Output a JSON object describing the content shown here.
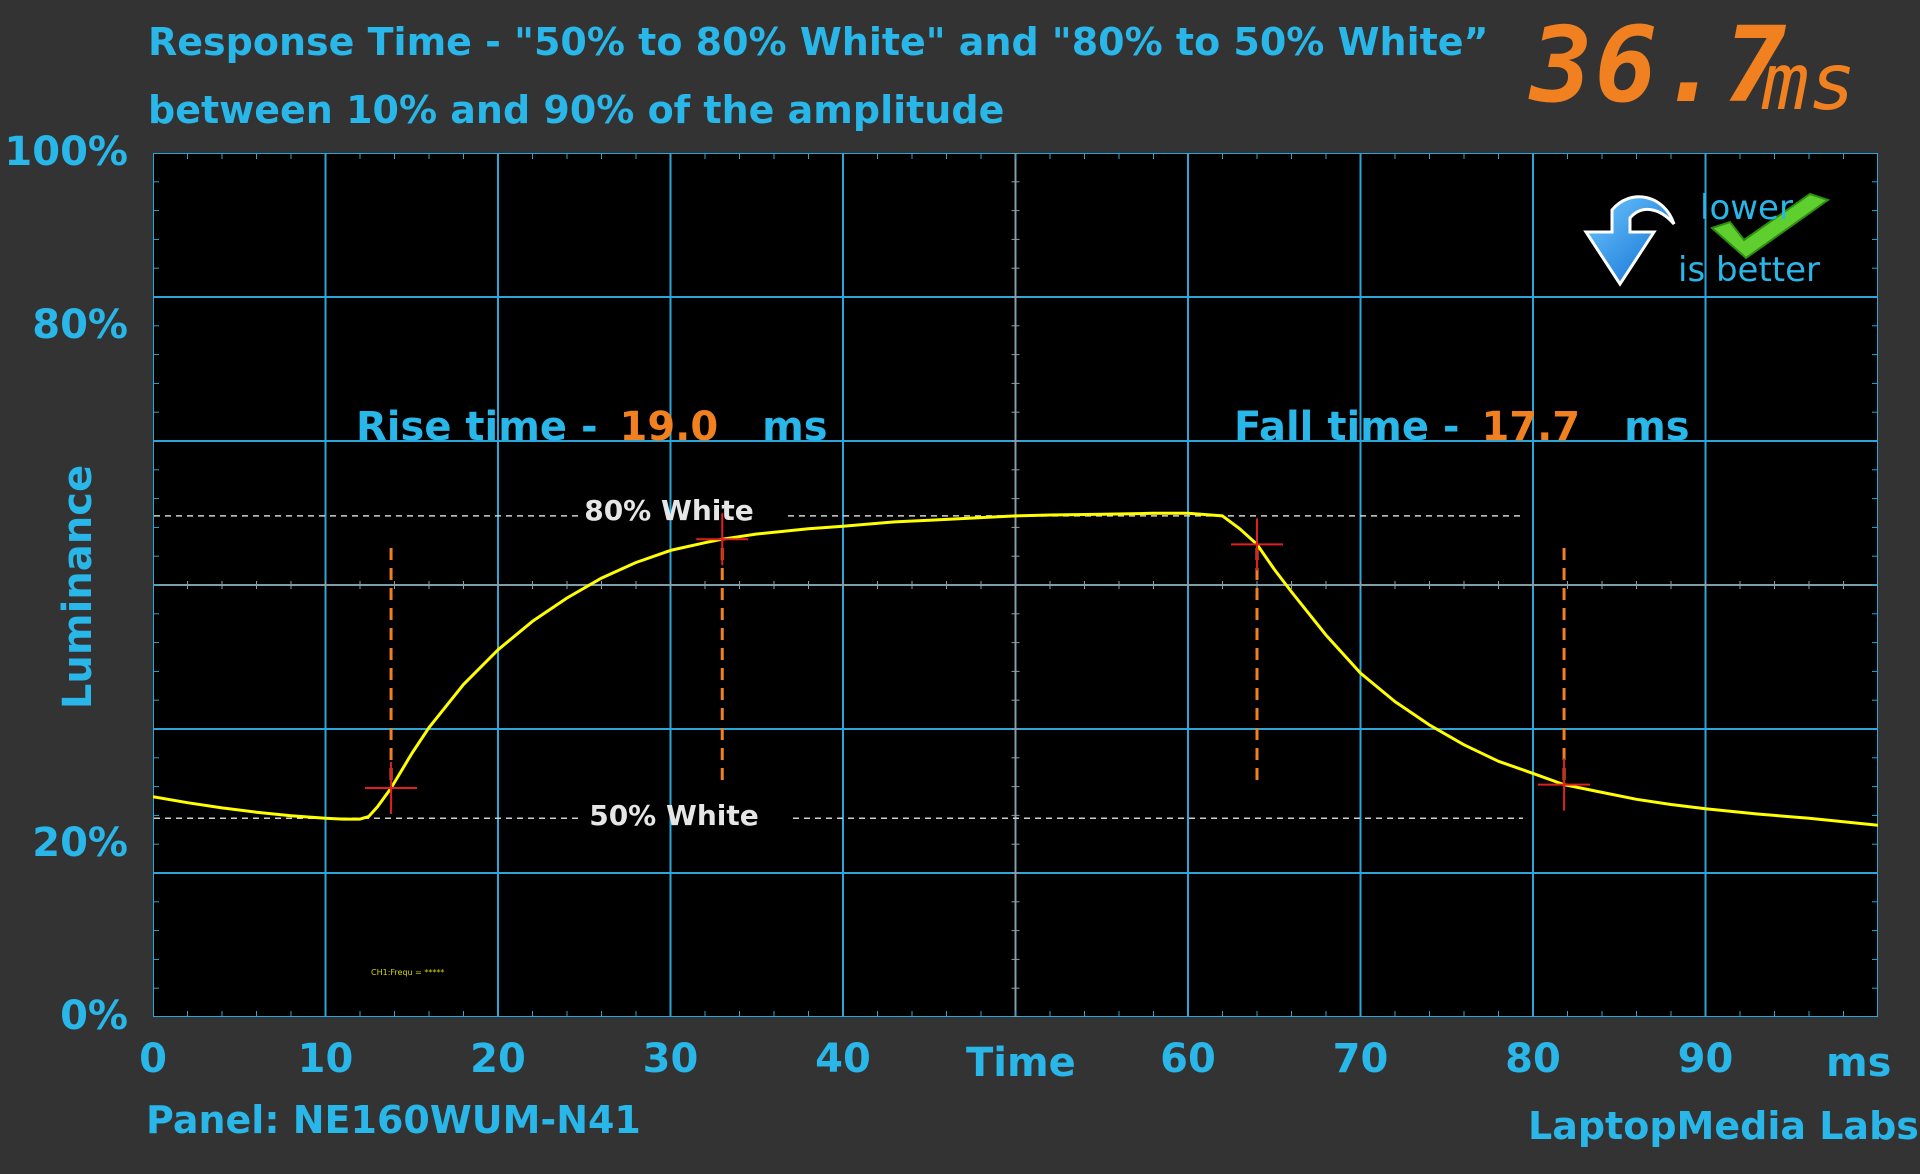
{
  "header": {
    "title_line1": "Response Time - \"50% to 80% White\" and \"80% to 50% White”",
    "title_line2": "between 10% and 90% of the amplitude",
    "total_value": "36.7",
    "total_unit": "ms"
  },
  "badge": {
    "line1": "lower",
    "line2": "is better",
    "arrow_icon": "curved-down-arrow-icon",
    "check_icon": "checkmark-icon"
  },
  "measurements": {
    "rise_label": "Rise time -",
    "rise_value": "19.0",
    "rise_unit": "ms",
    "fall_label": "Fall time -",
    "fall_value": "17.7",
    "fall_unit": "ms"
  },
  "footer": {
    "panel": "Panel: NE160WUM-N41",
    "brand": "LaptopMedia Labs"
  },
  "chart_data": {
    "type": "line",
    "xlabel": "Time",
    "x_unit_label": "ms",
    "ylabel": "Luminance",
    "xlim": [
      0,
      100
    ],
    "ylim": [
      0,
      100
    ],
    "x_ticks": [
      "0",
      "10",
      "20",
      "30",
      "40",
      "60",
      "70",
      "80",
      "90"
    ],
    "x_tick_values": [
      0,
      10,
      20,
      30,
      40,
      60,
      70,
      80,
      90
    ],
    "y_ticks": [
      "0%",
      "20%",
      "80%",
      "100%"
    ],
    "y_tick_values": [
      0,
      20,
      80,
      100
    ],
    "grid": true,
    "reference_lines": [
      {
        "label": "80% White",
        "y": 58
      },
      {
        "label": "50% White",
        "y": 23
      }
    ],
    "markers": {
      "rise_start_x": 13.8,
      "rise_end_x": 33.0,
      "fall_start_x": 64.0,
      "fall_end_x": 81.8
    },
    "annotation": "CH1:Frequ = *****",
    "series": [
      {
        "color": "#ffff00",
        "x": [
          0,
          2,
          4,
          6,
          8,
          10,
          11,
          12,
          12.5,
          13,
          13.8,
          15,
          16,
          18,
          20,
          22,
          24,
          26,
          28,
          30,
          32,
          33,
          35,
          38,
          40,
          43,
          45,
          48,
          50,
          52,
          55,
          58,
          60,
          62,
          63,
          64,
          65,
          66,
          68,
          70,
          72,
          74,
          76,
          78,
          80,
          81.8,
          84,
          86,
          88,
          90,
          93,
          96,
          100
        ],
        "y": [
          25.5,
          24.8,
          24.2,
          23.7,
          23.3,
          23.0,
          22.9,
          22.9,
          23.2,
          24.3,
          26.5,
          30.5,
          33.5,
          38.5,
          42.5,
          45.8,
          48.5,
          50.8,
          52.6,
          54.0,
          54.9,
          55.3,
          55.9,
          56.5,
          56.8,
          57.3,
          57.5,
          57.8,
          58.0,
          58.1,
          58.2,
          58.3,
          58.3,
          58.0,
          56.5,
          54.7,
          51.8,
          49.2,
          44.2,
          39.8,
          36.5,
          33.8,
          31.5,
          29.6,
          28.2,
          26.9,
          26.0,
          25.2,
          24.6,
          24.1,
          23.5,
          23.0,
          22.2
        ]
      }
    ]
  }
}
